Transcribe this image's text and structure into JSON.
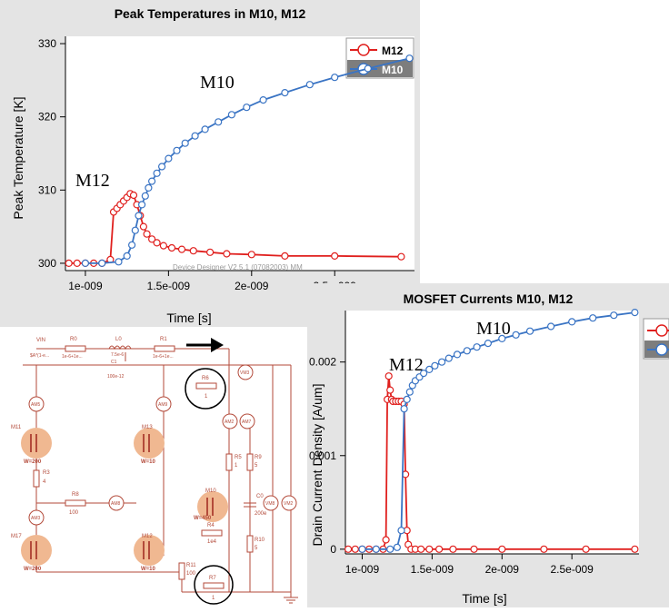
{
  "charts": [
    {
      "title": "Peak Temperatures in M10, M12",
      "xlabel": "Time [s]",
      "ylabel": "Peak Temperature [K]",
      "annotations": {
        "a": "M10",
        "b": "M12"
      },
      "watermark": "Device Designer V2.5.1 (07082003) MM",
      "legend": [
        "M12",
        "M10"
      ]
    },
    {
      "title": "MOSFET Currents M10, M12",
      "xlabel": "Time [s]",
      "ylabel": "Drain Current Density [A/um]",
      "annotations": {
        "a": "M10",
        "b": "M12"
      }
    }
  ],
  "circuit": {
    "source_label": "VIN",
    "source_expr": "$A*(1-e...",
    "components": [
      {
        "name": "R0",
        "value": "1e-6+1e..."
      },
      {
        "name": "L0",
        "value": "7.5e-6"
      },
      {
        "name": "R1",
        "value": "1e-6+1e..."
      },
      {
        "name": "C1",
        "value": "100e-12"
      },
      {
        "name": "R6",
        "value": "1"
      },
      {
        "name": "R3",
        "value": "4"
      },
      {
        "name": "R8",
        "value": "100"
      },
      {
        "name": "R5",
        "value": "1"
      },
      {
        "name": "R9",
        "value": "5"
      },
      {
        "name": "C0",
        "value": "200e"
      },
      {
        "name": "R4",
        "value": "1e4"
      },
      {
        "name": "R10",
        "value": "5"
      },
      {
        "name": "R11",
        "value": "100"
      },
      {
        "name": "R7",
        "value": "1"
      }
    ],
    "transistors": [
      {
        "name": "M11",
        "width": "W=200"
      },
      {
        "name": "M13",
        "width": "W=10"
      },
      {
        "name": "M10",
        "width": "W=450"
      },
      {
        "name": "M17",
        "width": "W=200"
      },
      {
        "name": "M12",
        "width": "W=10"
      }
    ],
    "ammeters": [
      "AM5",
      "AM9",
      "AM3",
      "AM8",
      "AM2",
      "AM7",
      "VM3",
      "VM8",
      "VM2"
    ]
  },
  "chart_data": [
    {
      "type": "line",
      "title": "Peak Temperatures in M10, M12",
      "xlabel": "Time [s]",
      "ylabel": "Peak Temperature [K]",
      "xlim": [
        8.8e-10,
        2.98e-09
      ],
      "ylim": [
        299,
        331
      ],
      "xticks": [
        {
          "v": 1e-09,
          "label": "1e-009"
        },
        {
          "v": 1.5e-09,
          "label": "1.5e-009"
        },
        {
          "v": 2e-09,
          "label": "2e-009"
        },
        {
          "v": 2.5e-09,
          "label": "2.5e-009"
        }
      ],
      "yticks": [
        {
          "v": 300,
          "label": "300"
        },
        {
          "v": 310,
          "label": "310"
        },
        {
          "v": 320,
          "label": "320"
        },
        {
          "v": 330,
          "label": "330"
        }
      ],
      "grid": false,
      "legend_position": "top-right outside",
      "series": [
        {
          "name": "M12",
          "color": "#e0201e",
          "x": [
            9e-10,
            9.5e-10,
            1e-09,
            1.05e-09,
            1.1e-09,
            1.15e-09,
            1.17e-09,
            1.19e-09,
            1.21e-09,
            1.23e-09,
            1.25e-09,
            1.27e-09,
            1.29e-09,
            1.31e-09,
            1.33e-09,
            1.35e-09,
            1.37e-09,
            1.4e-09,
            1.43e-09,
            1.47e-09,
            1.52e-09,
            1.58e-09,
            1.65e-09,
            1.75e-09,
            1.85e-09,
            2e-09,
            2.2e-09,
            2.5e-09,
            2.9e-09
          ],
          "y": [
            300,
            300,
            300,
            300,
            300,
            300.5,
            307,
            307.5,
            308,
            308.5,
            309,
            309.5,
            309.3,
            308,
            306.5,
            305,
            304,
            303.3,
            302.8,
            302.4,
            302.1,
            301.9,
            301.7,
            301.5,
            301.3,
            301.2,
            301,
            301,
            300.9
          ]
        },
        {
          "name": "M10",
          "color": "#3a74c4",
          "x": [
            1e-09,
            1.1e-09,
            1.2e-09,
            1.25e-09,
            1.28e-09,
            1.3e-09,
            1.32e-09,
            1.34e-09,
            1.36e-09,
            1.38e-09,
            1.4e-09,
            1.43e-09,
            1.46e-09,
            1.5e-09,
            1.55e-09,
            1.6e-09,
            1.66e-09,
            1.72e-09,
            1.8e-09,
            1.88e-09,
            1.97e-09,
            2.07e-09,
            2.2e-09,
            2.35e-09,
            2.5e-09,
            2.7e-09,
            2.95e-09
          ],
          "y": [
            300,
            300,
            300.2,
            301,
            302.5,
            304.5,
            306.5,
            308,
            309.2,
            310.3,
            311.2,
            312.3,
            313.2,
            314.3,
            315.4,
            316.4,
            317.4,
            318.3,
            319.3,
            320.3,
            321.3,
            322.3,
            323.3,
            324.4,
            325.4,
            326.6,
            328
          ]
        }
      ]
    },
    {
      "type": "line",
      "title": "MOSFET Currents M10, M12",
      "xlabel": "Time [s]",
      "ylabel": "Drain Current Density [A/um]",
      "xlim": [
        8.8e-10,
        2.98e-09
      ],
      "ylim": [
        -5e-05,
        0.00255
      ],
      "xticks": [
        {
          "v": 1e-09,
          "label": "1e-009"
        },
        {
          "v": 1.5e-09,
          "label": "1.5e-009"
        },
        {
          "v": 2e-09,
          "label": "2e-009"
        },
        {
          "v": 2.5e-09,
          "label": "2.5e-009"
        }
      ],
      "yticks": [
        {
          "v": 0,
          "label": "0"
        },
        {
          "v": 0.001,
          "label": "0.001"
        },
        {
          "v": 0.002,
          "label": "0.002"
        }
      ],
      "grid": false,
      "legend_position": "top-right outside",
      "series": [
        {
          "name": "M12",
          "color": "#e0201e",
          "x": [
            9e-10,
            9.5e-10,
            1e-09,
            1.05e-09,
            1.1e-09,
            1.15e-09,
            1.17e-09,
            1.18e-09,
            1.19e-09,
            1.2e-09,
            1.21e-09,
            1.22e-09,
            1.24e-09,
            1.26e-09,
            1.28e-09,
            1.3e-09,
            1.31e-09,
            1.32e-09,
            1.33e-09,
            1.35e-09,
            1.38e-09,
            1.42e-09,
            1.48e-09,
            1.55e-09,
            1.65e-09,
            1.8e-09,
            2e-09,
            2.3e-09,
            2.6e-09,
            2.95e-09
          ],
          "y": [
            0,
            0,
            0,
            0,
            0,
            0,
            0.0001,
            0.0016,
            0.00185,
            0.0017,
            0.0016,
            0.00158,
            0.00158,
            0.00158,
            0.00158,
            0.00155,
            0.0008,
            0.0002,
            5e-05,
            0,
            0,
            0,
            0,
            0,
            0,
            0,
            0,
            0,
            0,
            0
          ]
        },
        {
          "name": "M10",
          "color": "#3a74c4",
          "x": [
            1e-09,
            1.1e-09,
            1.2e-09,
            1.25e-09,
            1.28e-09,
            1.3e-09,
            1.32e-09,
            1.34e-09,
            1.36e-09,
            1.38e-09,
            1.41e-09,
            1.44e-09,
            1.48e-09,
            1.52e-09,
            1.57e-09,
            1.62e-09,
            1.68e-09,
            1.75e-09,
            1.82e-09,
            1.9e-09,
            2e-09,
            2.1e-09,
            2.2e-09,
            2.35e-09,
            2.5e-09,
            2.65e-09,
            2.8e-09,
            2.95e-09
          ],
          "y": [
            0,
            0,
            0,
            2e-05,
            0.0002,
            0.0015,
            0.0016,
            0.00168,
            0.00175,
            0.0018,
            0.00184,
            0.00188,
            0.00192,
            0.00196,
            0.002,
            0.00204,
            0.00208,
            0.00212,
            0.00216,
            0.0022,
            0.00225,
            0.00229,
            0.00233,
            0.00238,
            0.00243,
            0.00247,
            0.0025,
            0.00253
          ]
        }
      ]
    }
  ]
}
